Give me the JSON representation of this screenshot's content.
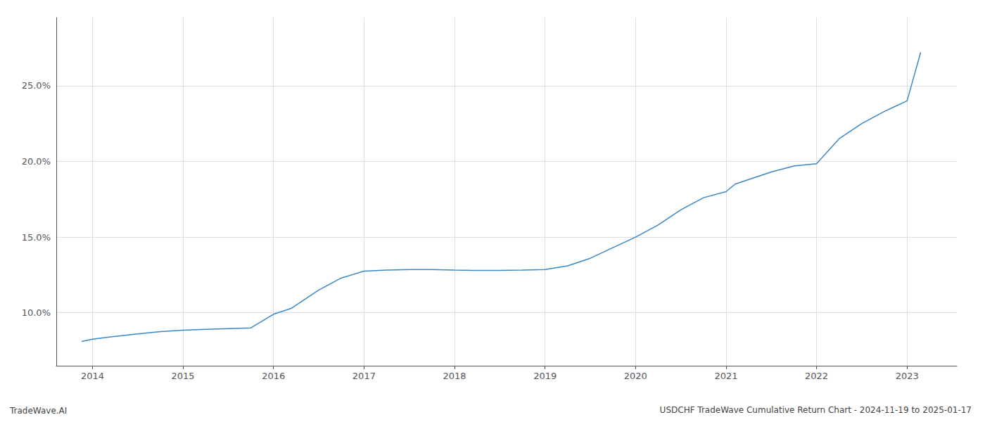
{
  "chart_data": {
    "type": "line",
    "title": "USDCHF TradeWave Cumulative Return Chart - 2024-11-19 to 2025-01-17",
    "annotations": [
      "TradeWave.AI"
    ],
    "color": "#3a87c8",
    "x": [
      2013.88,
      2014.0,
      2014.2,
      2014.5,
      2014.75,
      2015.0,
      2015.25,
      2015.5,
      2015.75,
      2016.0,
      2016.2,
      2016.5,
      2016.75,
      2017.0,
      2017.25,
      2017.5,
      2017.75,
      2018.0,
      2018.2,
      2018.5,
      2018.75,
      2019.0,
      2019.25,
      2019.5,
      2019.75,
      2020.0,
      2020.25,
      2020.5,
      2020.75,
      2021.0,
      2021.1,
      2021.25,
      2021.5,
      2021.75,
      2022.0,
      2022.25,
      2022.5,
      2022.75,
      2023.0,
      2023.15
    ],
    "values": [
      8.1,
      8.25,
      8.4,
      8.6,
      8.75,
      8.85,
      8.9,
      8.95,
      9.0,
      9.9,
      10.3,
      11.5,
      12.3,
      12.75,
      12.82,
      12.85,
      12.85,
      12.82,
      12.8,
      12.8,
      12.82,
      12.85,
      13.1,
      13.6,
      14.3,
      15.0,
      15.8,
      16.8,
      17.6,
      18.0,
      18.5,
      18.8,
      19.3,
      19.7,
      19.85,
      21.5,
      22.5,
      23.3,
      24.0,
      27.2
    ],
    "xlim": [
      2013.6,
      2023.55
    ],
    "xticks": [
      2014,
      2015,
      2016,
      2017,
      2018,
      2019,
      2020,
      2021,
      2022,
      2023
    ],
    "ylim": [
      6.5,
      29.5
    ],
    "yticks": [
      {
        "value": 10.0,
        "label": "10.0%"
      },
      {
        "value": 15.0,
        "label": "15.0%"
      },
      {
        "value": 20.0,
        "label": "20.0%"
      },
      {
        "value": 25.0,
        "label": "25.0%"
      }
    ],
    "grid": true
  }
}
